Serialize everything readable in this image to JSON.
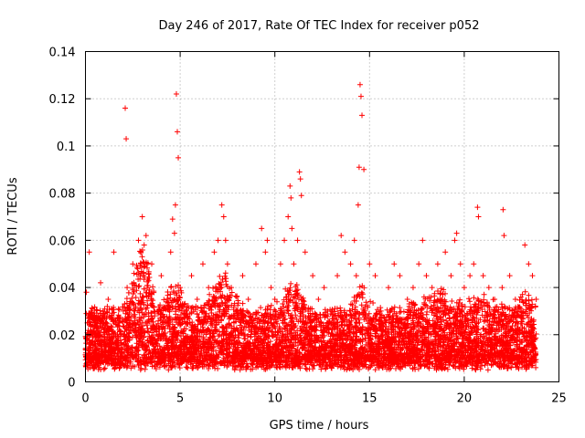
{
  "chart_data": {
    "type": "scatter",
    "title": "Day 246 of 2017, Rate Of TEC Index for receiver p052",
    "xlabel": "GPS time / hours",
    "ylabel": "ROTI / TECUs",
    "xlim": [
      0,
      25
    ],
    "ylim": [
      0,
      0.14
    ],
    "xticks": [
      0,
      5,
      10,
      15,
      20,
      25
    ],
    "xtick_labels": [
      "0",
      "5",
      "10",
      "15",
      "20",
      "25"
    ],
    "yticks": [
      0,
      0.02,
      0.04,
      0.06,
      0.08,
      0.1,
      0.12,
      0.14
    ],
    "ytick_labels": [
      "0",
      "0.02",
      "0.04",
      "0.06",
      "0.08",
      "0.1",
      "0.12",
      "0.14"
    ],
    "grid": true,
    "marker": "+",
    "color": "#ff0000",
    "data_x_range": [
      0,
      23.8
    ],
    "series": [
      {
        "name": "ROTI",
        "x": [
          0.05,
          0.1,
          0.15,
          0.2,
          0.3,
          0.5,
          0.8,
          1.0,
          1.2,
          1.5,
          1.8,
          2.0,
          2.1,
          2.15,
          2.2,
          2.5,
          2.6,
          2.8,
          2.9,
          3.0,
          3.1,
          3.2,
          3.3,
          3.5,
          3.8,
          4.0,
          4.3,
          4.5,
          4.6,
          4.7,
          4.75,
          4.8,
          4.85,
          4.9,
          5.0,
          5.3,
          5.6,
          5.9,
          6.2,
          6.5,
          6.8,
          7.0,
          7.2,
          7.3,
          7.4,
          7.5,
          7.7,
          8.0,
          8.3,
          8.6,
          9.0,
          9.3,
          9.5,
          9.6,
          9.8,
          10.0,
          10.3,
          10.5,
          10.7,
          10.8,
          10.85,
          10.9,
          11.0,
          11.2,
          11.3,
          11.35,
          11.4,
          11.6,
          12.0,
          12.3,
          12.6,
          13.0,
          13.3,
          13.5,
          13.7,
          14.0,
          14.2,
          14.3,
          14.4,
          14.45,
          14.5,
          14.55,
          14.6,
          14.7,
          15.0,
          15.3,
          15.6,
          16.0,
          16.3,
          16.6,
          17.0,
          17.3,
          17.6,
          17.8,
          18.0,
          18.3,
          18.6,
          19.0,
          19.3,
          19.5,
          19.6,
          19.8,
          20.0,
          20.3,
          20.5,
          20.7,
          20.75,
          21.0,
          21.3,
          21.6,
          22.0,
          22.05,
          22.1,
          22.4,
          22.7,
          23.0,
          23.2,
          23.4,
          23.6,
          23.8
        ],
        "y": [
          0.038,
          0.025,
          0.012,
          0.055,
          0.03,
          0.015,
          0.042,
          0.02,
          0.035,
          0.055,
          0.025,
          0.03,
          0.116,
          0.103,
          0.04,
          0.05,
          0.03,
          0.06,
          0.045,
          0.07,
          0.058,
          0.062,
          0.04,
          0.05,
          0.03,
          0.045,
          0.025,
          0.055,
          0.069,
          0.063,
          0.075,
          0.122,
          0.106,
          0.095,
          0.04,
          0.03,
          0.045,
          0.035,
          0.05,
          0.04,
          0.055,
          0.06,
          0.075,
          0.07,
          0.06,
          0.05,
          0.04,
          0.03,
          0.045,
          0.035,
          0.05,
          0.065,
          0.055,
          0.06,
          0.04,
          0.035,
          0.05,
          0.06,
          0.07,
          0.083,
          0.078,
          0.065,
          0.05,
          0.06,
          0.089,
          0.086,
          0.079,
          0.055,
          0.045,
          0.035,
          0.04,
          0.03,
          0.045,
          0.062,
          0.055,
          0.05,
          0.06,
          0.045,
          0.075,
          0.091,
          0.126,
          0.121,
          0.113,
          0.09,
          0.05,
          0.045,
          0.03,
          0.04,
          0.05,
          0.045,
          0.035,
          0.04,
          0.05,
          0.06,
          0.045,
          0.04,
          0.05,
          0.055,
          0.045,
          0.06,
          0.063,
          0.05,
          0.04,
          0.045,
          0.05,
          0.074,
          0.07,
          0.045,
          0.04,
          0.035,
          0.04,
          0.073,
          0.062,
          0.045,
          0.035,
          0.03,
          0.058,
          0.05,
          0.045,
          0.035
        ]
      }
    ]
  }
}
